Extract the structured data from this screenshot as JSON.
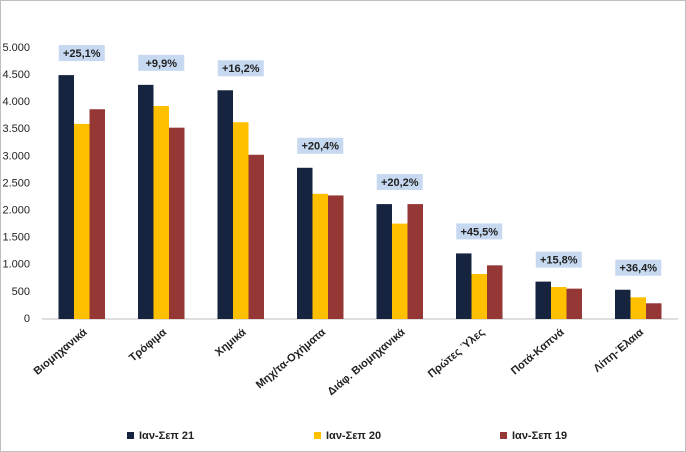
{
  "chart_data": {
    "type": "bar",
    "categories": [
      "Βιομηχανικά",
      "Τρόφιμα",
      "Χημικά",
      "Μηχ/τα-Οχήματα",
      "Διάφ. Βιομηχανικά",
      "Πρώτες Ύλες",
      "Ποτά-Καπνά",
      "Λίπη-Έλαια"
    ],
    "series": [
      {
        "name": "Ιαν-Σεπ 21",
        "color": "#17243f",
        "values": [
          4500,
          4320,
          4220,
          2790,
          2120,
          1210,
          690,
          540
        ]
      },
      {
        "name": "Ιαν-Σεπ 20",
        "color": "#ffc000",
        "values": [
          3600,
          3930,
          3630,
          2310,
          1760,
          830,
          590,
          400
        ]
      },
      {
        "name": "Ιαν-Σεπ 19",
        "color": "#953735",
        "values": [
          3870,
          3530,
          3030,
          2280,
          2120,
          990,
          560,
          290
        ]
      }
    ],
    "annotations": [
      "+25,1%",
      "+9,9%",
      "+16,2%",
      "+20,4%",
      "+20,2%",
      "+45,5%",
      "+15,8%",
      "+36,4%"
    ],
    "ylim": [
      0,
      5000
    ],
    "yticks": [
      0,
      500,
      {
        "value": 1000,
        "label": "1.000"
      },
      {
        "value": 1500,
        "label": "1.500"
      },
      {
        "value": 2000,
        "label": "2.000"
      },
      {
        "value": 2500,
        "label": "2.500"
      },
      {
        "value": 3000,
        "label": "3.000"
      },
      {
        "value": 3500,
        "label": "3.500"
      },
      {
        "value": 4000,
        "label": "4.000"
      },
      {
        "value": 4500,
        "label": "4.500"
      },
      {
        "value": 5000,
        "label": "5.000"
      }
    ],
    "grid": false,
    "legend": "bottom"
  }
}
